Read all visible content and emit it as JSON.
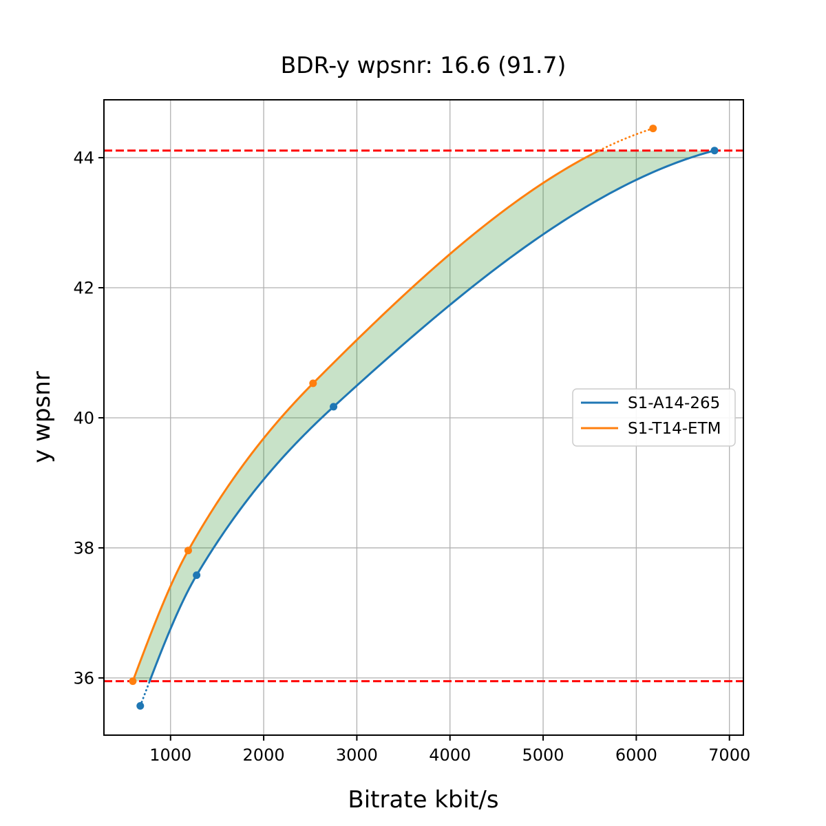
{
  "chart_data": {
    "type": "line",
    "title": "BDR-y wpsnr: 16.6 (91.7)",
    "xlabel": "Bitrate kbit/s",
    "ylabel": "y wpsnr",
    "xlim": [
      285,
      7150
    ],
    "ylim": [
      35.12,
      44.89
    ],
    "xticks": [
      1000,
      2000,
      3000,
      4000,
      5000,
      6000,
      7000
    ],
    "yticks": [
      36,
      38,
      40,
      42,
      44
    ],
    "grid": true,
    "grid_color": "#b0b0b0",
    "axis_color": "#000000",
    "series": [
      {
        "name": "S1-A14-265",
        "color": "#1f77b4",
        "x": [
          675,
          1280,
          2750,
          6840
        ],
        "y": [
          35.57,
          37.58,
          40.17,
          44.11
        ]
      },
      {
        "name": "S1-T14-ETM",
        "color": "#ff7f0e",
        "x": [
          595,
          1190,
          2530,
          6180
        ],
        "y": [
          35.95,
          37.96,
          40.53,
          44.45
        ]
      }
    ],
    "overlap_band": {
      "low": 35.95,
      "high": 44.11,
      "fill_color": "rgba(34,139,34,0.25)"
    },
    "reference_lines": {
      "values": [
        35.95,
        44.11
      ],
      "color": "#ff0000",
      "style": "dashed"
    },
    "legend": {
      "position": "center-right",
      "entries": [
        "S1-A14-265",
        "S1-T14-ETM"
      ]
    }
  }
}
